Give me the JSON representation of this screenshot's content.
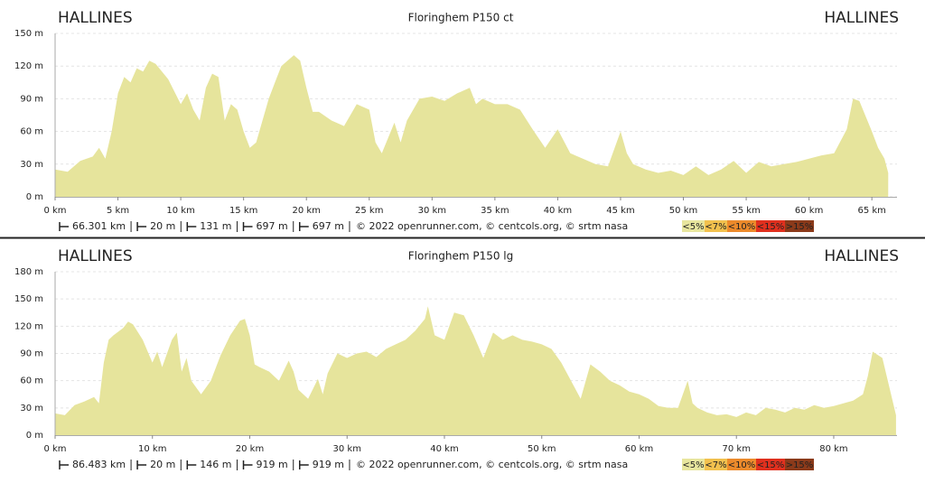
{
  "chart_data": [
    {
      "type": "area",
      "start": "HALLINES",
      "end": "HALLINES",
      "title": "Floringhem P150 ct",
      "color": "#e6e49c",
      "grid": true,
      "x": [
        0,
        1,
        2,
        3,
        3.5,
        4,
        4.5,
        5,
        5.5,
        6,
        6.5,
        7,
        7.5,
        8,
        9,
        10,
        10.5,
        11,
        11.5,
        12,
        12.5,
        13,
        13.5,
        14,
        14.5,
        15,
        15.5,
        16,
        17,
        17.5,
        18,
        19,
        19.5,
        20,
        20.5,
        21,
        22,
        23,
        24,
        25,
        25.5,
        26,
        27,
        27.5,
        28,
        29,
        30,
        31,
        32,
        33,
        33.5,
        34,
        35,
        36,
        37,
        38,
        39,
        40,
        41,
        42,
        43,
        44,
        45,
        45.5,
        46,
        47,
        48,
        49,
        50,
        51,
        52,
        53,
        54,
        55,
        56,
        57,
        58,
        59,
        60,
        61,
        62,
        63,
        63.5,
        64,
        65,
        65.5,
        66,
        66.3
      ],
      "values": [
        25,
        23,
        33,
        37,
        45,
        35,
        60,
        95,
        110,
        105,
        118,
        115,
        125,
        122,
        108,
        85,
        95,
        80,
        70,
        100,
        113,
        110,
        70,
        85,
        80,
        60,
        45,
        50,
        90,
        105,
        120,
        130,
        125,
        100,
        78,
        78,
        70,
        65,
        85,
        80,
        50,
        40,
        68,
        50,
        70,
        90,
        92,
        88,
        95,
        100,
        85,
        90,
        85,
        85,
        80,
        62,
        45,
        62,
        40,
        35,
        30,
        28,
        60,
        40,
        30,
        25,
        22,
        24,
        20,
        28,
        20,
        25,
        33,
        22,
        32,
        28,
        30,
        32,
        35,
        38,
        40,
        62,
        90,
        88,
        60,
        45,
        35,
        22
      ],
      "xlim": [
        0,
        67
      ],
      "ylim": [
        0,
        150
      ],
      "xticks": [
        {
          "value": 0,
          "label": "0 km"
        },
        {
          "value": 5,
          "label": "5 km"
        },
        {
          "value": 10,
          "label": "10 km"
        },
        {
          "value": 15,
          "label": "15 km"
        },
        {
          "value": 20,
          "label": "20 km"
        },
        {
          "value": 25,
          "label": "25 km"
        },
        {
          "value": 30,
          "label": "30 km"
        },
        {
          "value": 35,
          "label": "35 km"
        },
        {
          "value": 40,
          "label": "40 km"
        },
        {
          "value": 45,
          "label": "45 km"
        },
        {
          "value": 50,
          "label": "50 km"
        },
        {
          "value": 55,
          "label": "55 km"
        },
        {
          "value": 60,
          "label": "60 km"
        },
        {
          "value": 65,
          "label": "65 km"
        }
      ],
      "yticks": [
        {
          "value": 0,
          "label": "0 m"
        },
        {
          "value": 30,
          "label": "30 m"
        },
        {
          "value": 60,
          "label": "60 m"
        },
        {
          "value": 90,
          "label": "90 m"
        },
        {
          "value": 120,
          "label": "120 m"
        },
        {
          "value": 150,
          "label": "150 m"
        }
      ],
      "footer": [
        "66.301 km",
        "20 m",
        "131 m",
        "697 m",
        "697 m",
        "© 2022 openrunner.com, © centcols.org, © srtm nasa"
      ],
      "legend": [
        {
          "label": "<5%",
          "color": "#e8e69e"
        },
        {
          "label": "<7%",
          "color": "#f2c14e"
        },
        {
          "label": "<10%",
          "color": "#ec8a2b"
        },
        {
          "label": "<15%",
          "color": "#e0301e"
        },
        {
          "label": ">15%",
          "color": "#8b3a1a"
        }
      ]
    },
    {
      "type": "area",
      "start": "HALLINES",
      "end": "HALLINES",
      "title": "Floringhem P150 lg",
      "color": "#e6e49c",
      "grid": true,
      "x": [
        0,
        1,
        2,
        3,
        4,
        4.5,
        5,
        5.5,
        6,
        7,
        7.5,
        8,
        9,
        10,
        10.5,
        11,
        12,
        12.5,
        13,
        13.5,
        14,
        15,
        16,
        17,
        18,
        19,
        19.5,
        20,
        20.5,
        21,
        22,
        23,
        24,
        24.5,
        25,
        26,
        27,
        27.5,
        28,
        29,
        30,
        31,
        32,
        33,
        34,
        35,
        36,
        37,
        38,
        38.3,
        39,
        40,
        41,
        42,
        43,
        44,
        45,
        46,
        47,
        48,
        49,
        50,
        51,
        52,
        53,
        54,
        55,
        56,
        57,
        58,
        59,
        60,
        61,
        62,
        63,
        64,
        65,
        65.5,
        66,
        67,
        68,
        69,
        70,
        71,
        72,
        73,
        74,
        75,
        76,
        77,
        78,
        79,
        80,
        81,
        82,
        83,
        83.5,
        84,
        85,
        86,
        86.4
      ],
      "values": [
        24,
        22,
        33,
        37,
        42,
        35,
        80,
        105,
        110,
        118,
        125,
        122,
        105,
        80,
        92,
        75,
        105,
        113,
        70,
        85,
        60,
        45,
        60,
        88,
        110,
        126,
        128,
        110,
        78,
        75,
        70,
        60,
        82,
        70,
        50,
        40,
        62,
        45,
        68,
        90,
        85,
        90,
        92,
        86,
        95,
        100,
        105,
        115,
        128,
        142,
        110,
        105,
        135,
        132,
        110,
        85,
        113,
        105,
        110,
        105,
        103,
        100,
        95,
        80,
        60,
        40,
        78,
        70,
        60,
        55,
        48,
        45,
        40,
        32,
        30,
        30,
        60,
        35,
        30,
        25,
        22,
        23,
        20,
        25,
        22,
        30,
        28,
        25,
        30,
        28,
        33,
        30,
        32,
        35,
        38,
        45,
        65,
        92,
        85,
        40,
        22
      ],
      "xlim": [
        0,
        86.5
      ],
      "ylim": [
        0,
        180
      ],
      "xticks": [
        {
          "value": 0,
          "label": "0 km"
        },
        {
          "value": 10,
          "label": "10 km"
        },
        {
          "value": 20,
          "label": "20 km"
        },
        {
          "value": 30,
          "label": "30 km"
        },
        {
          "value": 40,
          "label": "40 km"
        },
        {
          "value": 50,
          "label": "50 km"
        },
        {
          "value": 60,
          "label": "60 km"
        },
        {
          "value": 70,
          "label": "70 km"
        },
        {
          "value": 80,
          "label": "80 km"
        }
      ],
      "yticks": [
        {
          "value": 0,
          "label": "0 m"
        },
        {
          "value": 30,
          "label": "30 m"
        },
        {
          "value": 60,
          "label": "60 m"
        },
        {
          "value": 90,
          "label": "90 m"
        },
        {
          "value": 120,
          "label": "120 m"
        },
        {
          "value": 150,
          "label": "150 m"
        },
        {
          "value": 180,
          "label": "180 m"
        }
      ],
      "footer": [
        "86.483 km",
        "20 m",
        "146 m",
        "919 m",
        "919 m",
        "© 2022 openrunner.com, © centcols.org, © srtm nasa"
      ],
      "legend": [
        {
          "label": "<5%",
          "color": "#e8e69e"
        },
        {
          "label": "<7%",
          "color": "#f2c14e"
        },
        {
          "label": "<10%",
          "color": "#ec8a2b"
        },
        {
          "label": "<15%",
          "color": "#e0301e"
        },
        {
          "label": ">15%",
          "color": "#8b3a1a"
        }
      ]
    }
  ]
}
